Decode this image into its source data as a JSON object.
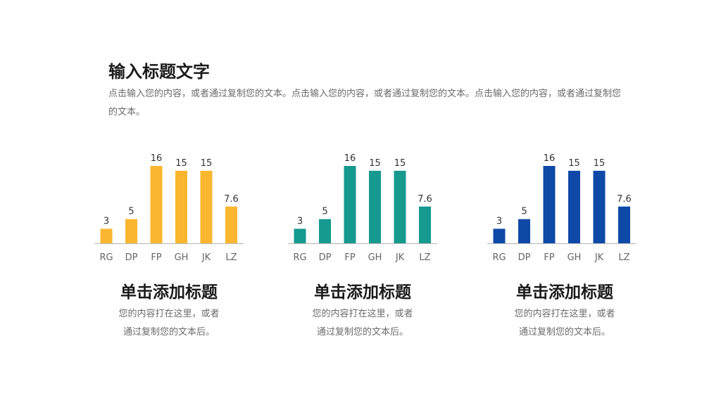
{
  "header": {
    "title": "输入标题文字",
    "intro": "点击输入您的内容，或者通过复制您的文本。点击输入您的内容，或者通过复制您的文本。点击输入您的内容，或者通过复制您的文本。"
  },
  "chart_data": [
    {
      "type": "bar",
      "categories": [
        "RG",
        "DP",
        "FP",
        "GH",
        "JK",
        "LZ"
      ],
      "values": [
        3,
        5,
        16,
        15,
        15,
        7.6
      ],
      "color": "#FBB62F",
      "ylim": [
        0,
        16
      ],
      "grid": false
    },
    {
      "type": "bar",
      "categories": [
        "RG",
        "DP",
        "FP",
        "GH",
        "JK",
        "LZ"
      ],
      "values": [
        3,
        5,
        16,
        15,
        15,
        7.6
      ],
      "color": "#16998F",
      "ylim": [
        0,
        16
      ],
      "grid": false
    },
    {
      "type": "bar",
      "categories": [
        "RG",
        "DP",
        "FP",
        "GH",
        "JK",
        "LZ"
      ],
      "values": [
        3,
        5,
        16,
        15,
        15,
        7.6
      ],
      "color": "#0E49A8",
      "ylim": [
        0,
        16
      ],
      "grid": false
    }
  ],
  "cards": [
    {
      "title": "单击添加标题",
      "line1": "您的内容打在这里，或者",
      "line2": "通过复制您的文本后。"
    },
    {
      "title": "单击添加标题",
      "line1": "您的内容打在这里，或者",
      "line2": "通过复制您的文本后。"
    },
    {
      "title": "单击添加标题",
      "line1": "您的内容打在这里，或者",
      "line2": "通过复制您的文本后。"
    }
  ]
}
